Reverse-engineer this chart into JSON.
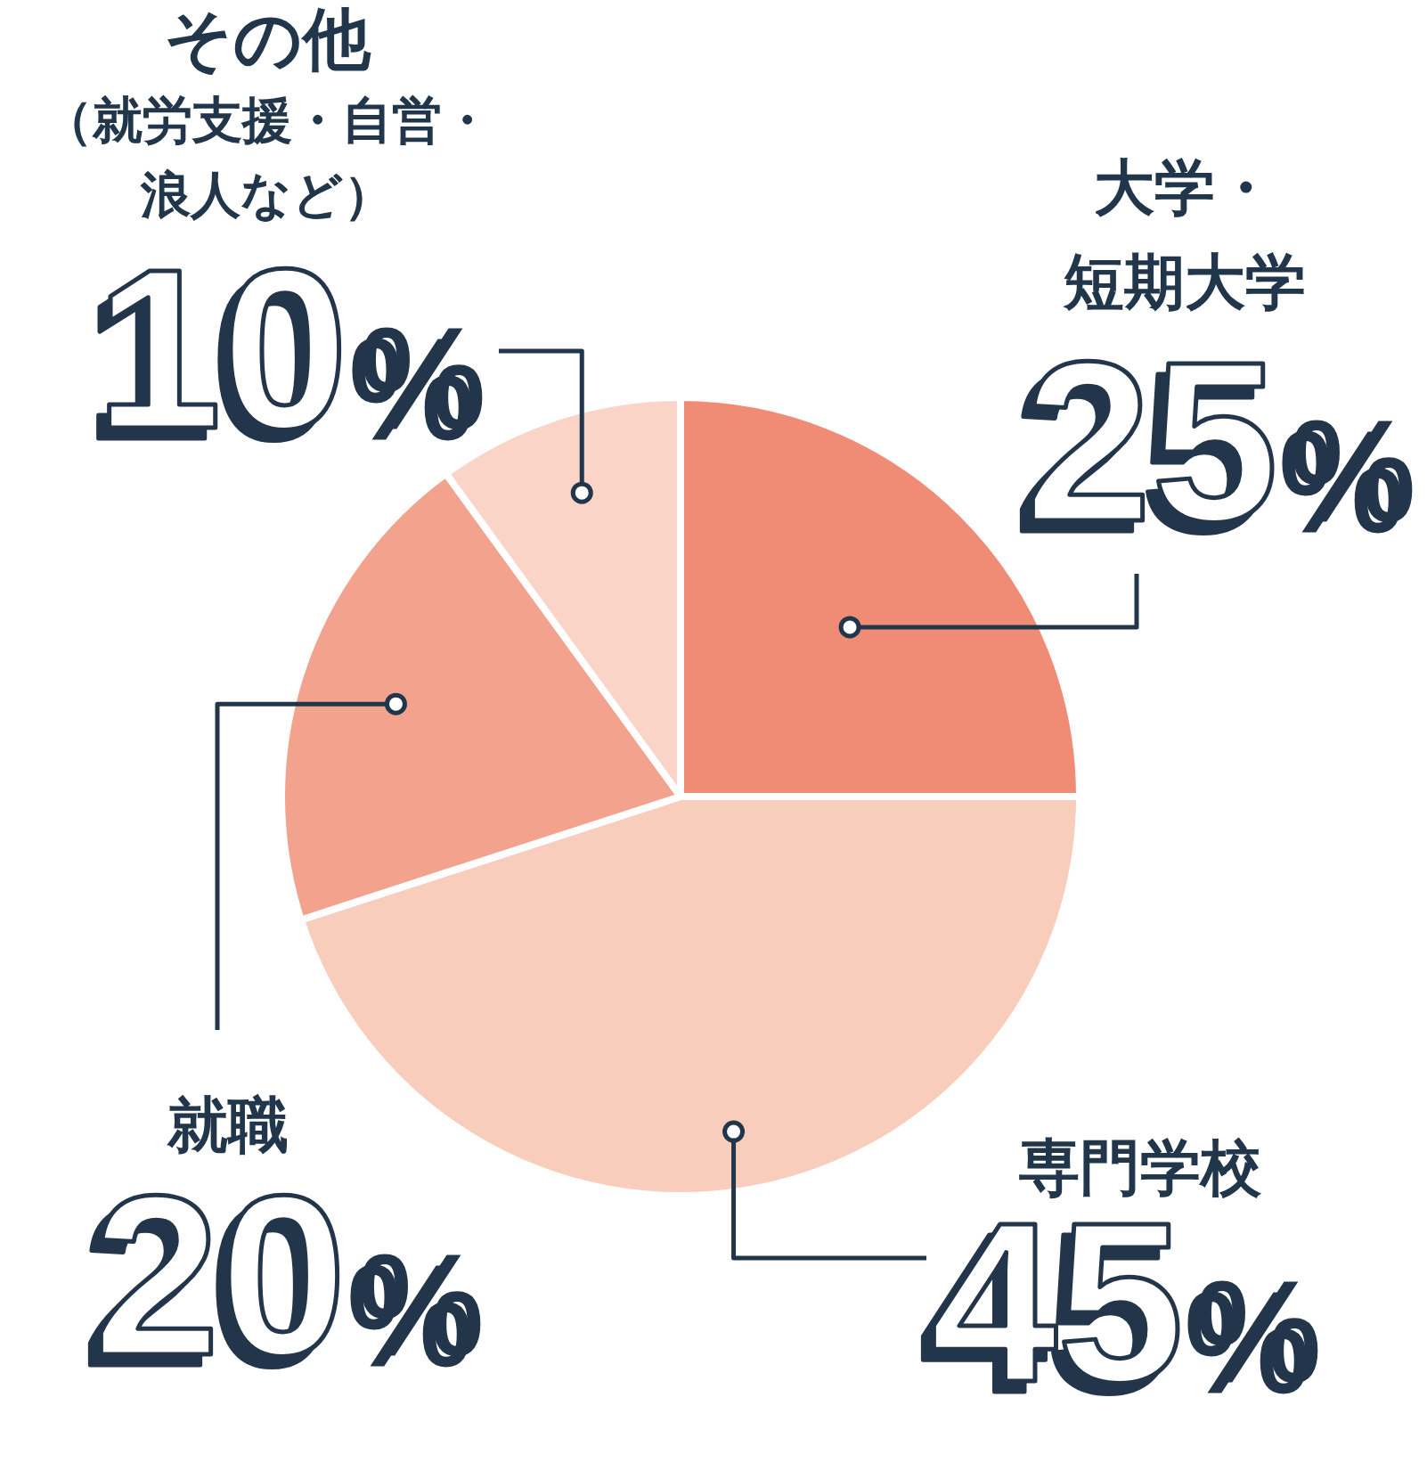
{
  "chart_data": {
    "type": "pie",
    "categories": [
      "大学・短期大学",
      "専門学校",
      "就職",
      "その他（就労支援・自営・浪人など）"
    ],
    "values": [
      25,
      45,
      20,
      10
    ],
    "colors": [
      "#f08b76",
      "#f8cdbc",
      "#f2a28d",
      "#f9d4c7"
    ],
    "value_labels": [
      "25%",
      "45%",
      "20%",
      "10%"
    ]
  }
}
